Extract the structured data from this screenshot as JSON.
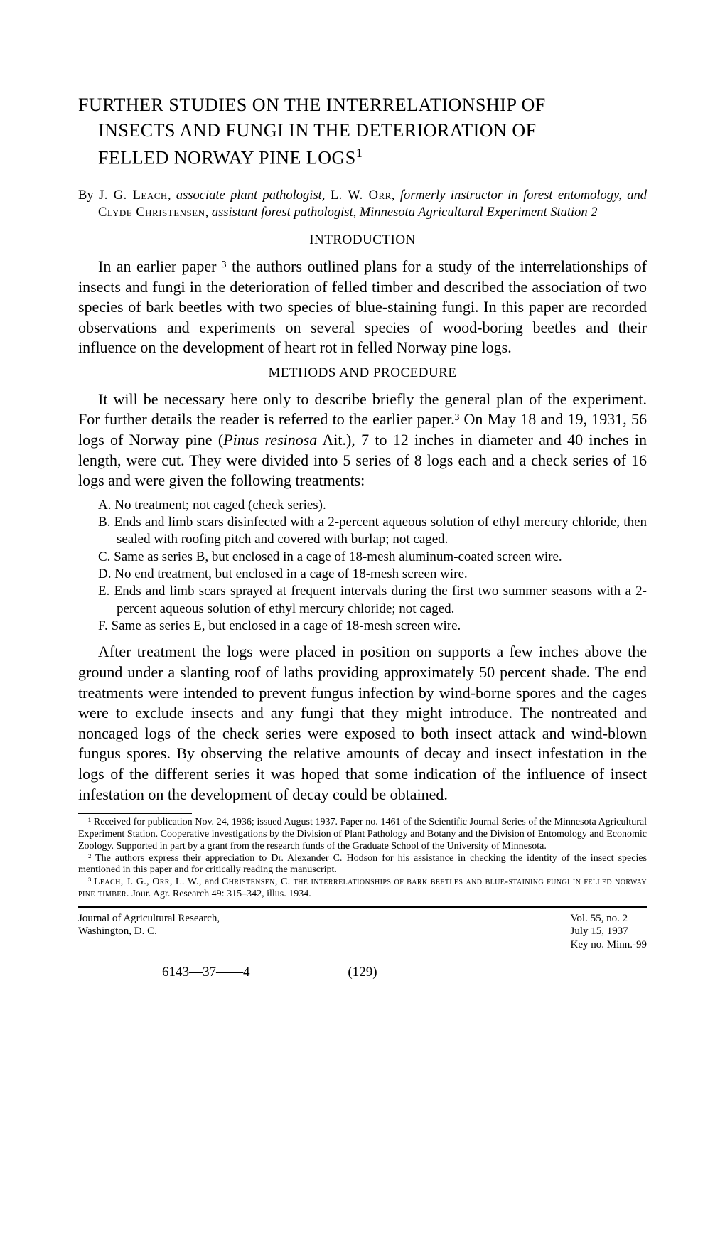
{
  "title": {
    "line1": "FURTHER STUDIES ON THE INTERRELATIONSHIP OF",
    "line2": "INSECTS AND FUNGI IN THE DETERIORATION OF",
    "line3": "FELLED NORWAY PINE LOGS",
    "footmark": "1"
  },
  "byline": {
    "prefix": "By ",
    "author1": "J. G. Leach",
    "role1": ", associate plant pathologist, ",
    "author2": "L. W. Orr",
    "role2": ", formerly instructor in forest entomology, and ",
    "author3": "Clyde Christensen",
    "role3": ", assistant forest pathologist, Minnesota Agricultural Experiment Station",
    "footmark": " 2"
  },
  "sections": {
    "intro_head": "INTRODUCTION",
    "intro_p1": "In an earlier paper ³ the authors outlined plans for a study of the interrelationships of insects and fungi in the deterioration of felled timber and described the association of two species of bark beetles with two species of blue-staining fungi. In this paper are recorded observations and experiments on several species of wood-boring beetles and their influence on the development of heart rot in felled Norway pine logs.",
    "methods_head": "METHODS AND PROCEDURE",
    "methods_p1_pre": "It will be necessary here only to describe briefly the general plan of the experiment. For further details the reader is referred to the earlier paper.³ On May 18 and 19, 1931, 56 logs of Norway pine (",
    "methods_p1_ital": "Pinus resinosa",
    "methods_p1_post": " Ait.), 7 to 12 inches in diameter and 40 inches in length, were cut. They were divided into 5 series of 8 logs each and a check series of 16 logs and were given the following treatments:",
    "methods_p2": "After treatment the logs were placed in position on supports a few inches above the ground under a slanting roof of laths providing approximately 50 percent shade. The end treatments were intended to prevent fungus infection by wind-borne spores and the cages were to exclude insects and any fungi that they might introduce. The nontreated and noncaged logs of the check series were exposed to both insect attack and wind-blown fungus spores. By observing the relative amounts of decay and insect infestation in the logs of the different series it was hoped that some indication of the influence of insect infestation on the development of decay could be obtained."
  },
  "treatments": [
    "A. No treatment; not caged (check series).",
    "B. Ends and limb scars disinfected with a 2-percent aqueous solution of ethyl mercury chloride, then sealed with roofing pitch and covered with burlap; not caged.",
    "C. Same as series B, but enclosed in a cage of 18-mesh aluminum-coated screen wire.",
    "D. No end treatment, but enclosed in a cage of 18-mesh screen wire.",
    "E. Ends and limb scars sprayed at frequent intervals during the first two summer seasons with a 2-percent aqueous solution of ethyl mercury chloride; not caged.",
    "F. Same as series E, but enclosed in a cage of 18-mesh screen wire."
  ],
  "footnotes": {
    "f1": "¹ Received for publication Nov. 24, 1936; issued August 1937. Paper no. 1461 of the Scientific Journal Series of the Minnesota Agricultural Experiment Station. Cooperative investigations by the Division of Plant Pathology and Botany and the Division of Entomology and Economic Zoology. Supported in part by a grant from the research funds of the Graduate School of the University of Minnesota.",
    "f2": "² The authors express their appreciation to Dr. Alexander C. Hodson for his assistance in checking the identity of the insect species mentioned in this paper and for critically reading the manuscript.",
    "f3_pre": "³ ",
    "f3_authors": "Leach, J. G., Orr, L. W., ",
    "f3_and": "and ",
    "f3_author3": "Christensen, C.",
    "f3_title_sc": "  the interrelationships of bark beetles and blue-staining fungi in felled norway pine timber.",
    "f3_cite": "  Jour. Agr. Research 49: 315–342, illus.  1934."
  },
  "footer": {
    "journal": "Journal of Agricultural Research,",
    "place": "Washington, D. C.",
    "vol": "Vol. 55, no. 2",
    "date": "July 15, 1937",
    "key": "Key no. Minn.-99",
    "sig": "6143—37——4",
    "pagenum": "(129)"
  },
  "colors": {
    "bg": "#ffffff",
    "text": "#000000"
  }
}
